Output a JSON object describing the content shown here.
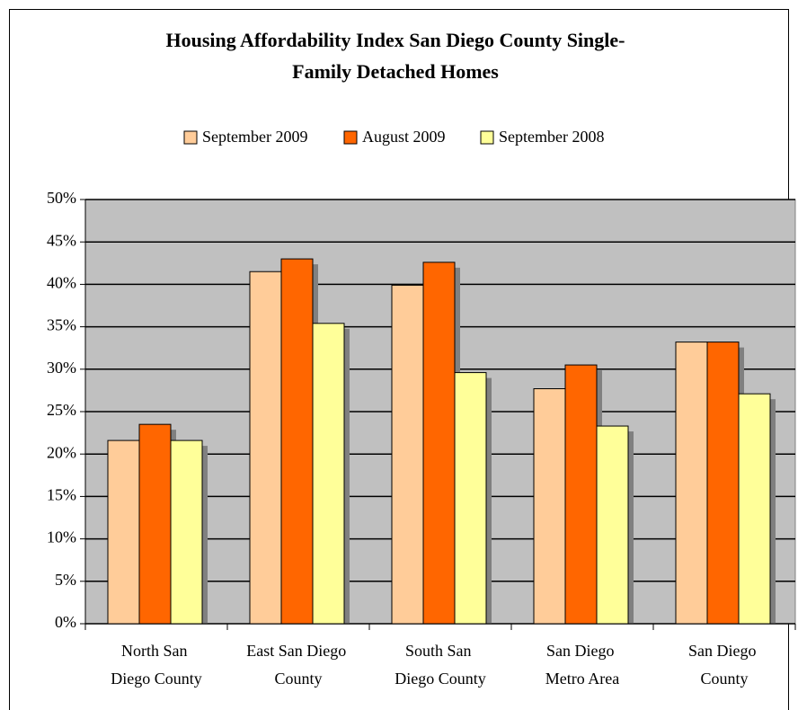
{
  "chart_data": {
    "type": "bar",
    "title": "Housing Affordability Index San Diego County Single-\nFamily Detached Homes",
    "categories": [
      "North San\nDiego County",
      "East San Diego\nCounty",
      "South San\nDiego County",
      "San Diego\nMetro Area",
      "San Diego\nCounty"
    ],
    "series": [
      {
        "name": "September 2009",
        "color": "#FFCC99",
        "values": [
          21.6,
          41.5,
          39.9,
          27.7,
          33.2
        ]
      },
      {
        "name": "August 2009",
        "color": "#FF6600",
        "values": [
          23.5,
          43.0,
          42.6,
          30.5,
          33.2
        ]
      },
      {
        "name": "September 2008",
        "color": "#FFFF99",
        "values": [
          21.6,
          35.4,
          29.6,
          23.3,
          27.1
        ]
      }
    ],
    "ylim": [
      0,
      50
    ],
    "yticks": [
      {
        "value": 0,
        "label": "0%"
      },
      {
        "value": 5,
        "label": "5%"
      },
      {
        "value": 10,
        "label": "10%"
      },
      {
        "value": 15,
        "label": "15%"
      },
      {
        "value": 20,
        "label": "20%"
      },
      {
        "value": 25,
        "label": "25%"
      },
      {
        "value": 30,
        "label": "30%"
      },
      {
        "value": 35,
        "label": "35%"
      },
      {
        "value": 40,
        "label": "40%"
      },
      {
        "value": 45,
        "label": "45%"
      },
      {
        "value": 50,
        "label": "50%"
      }
    ],
    "grid": true,
    "legend": "top"
  }
}
